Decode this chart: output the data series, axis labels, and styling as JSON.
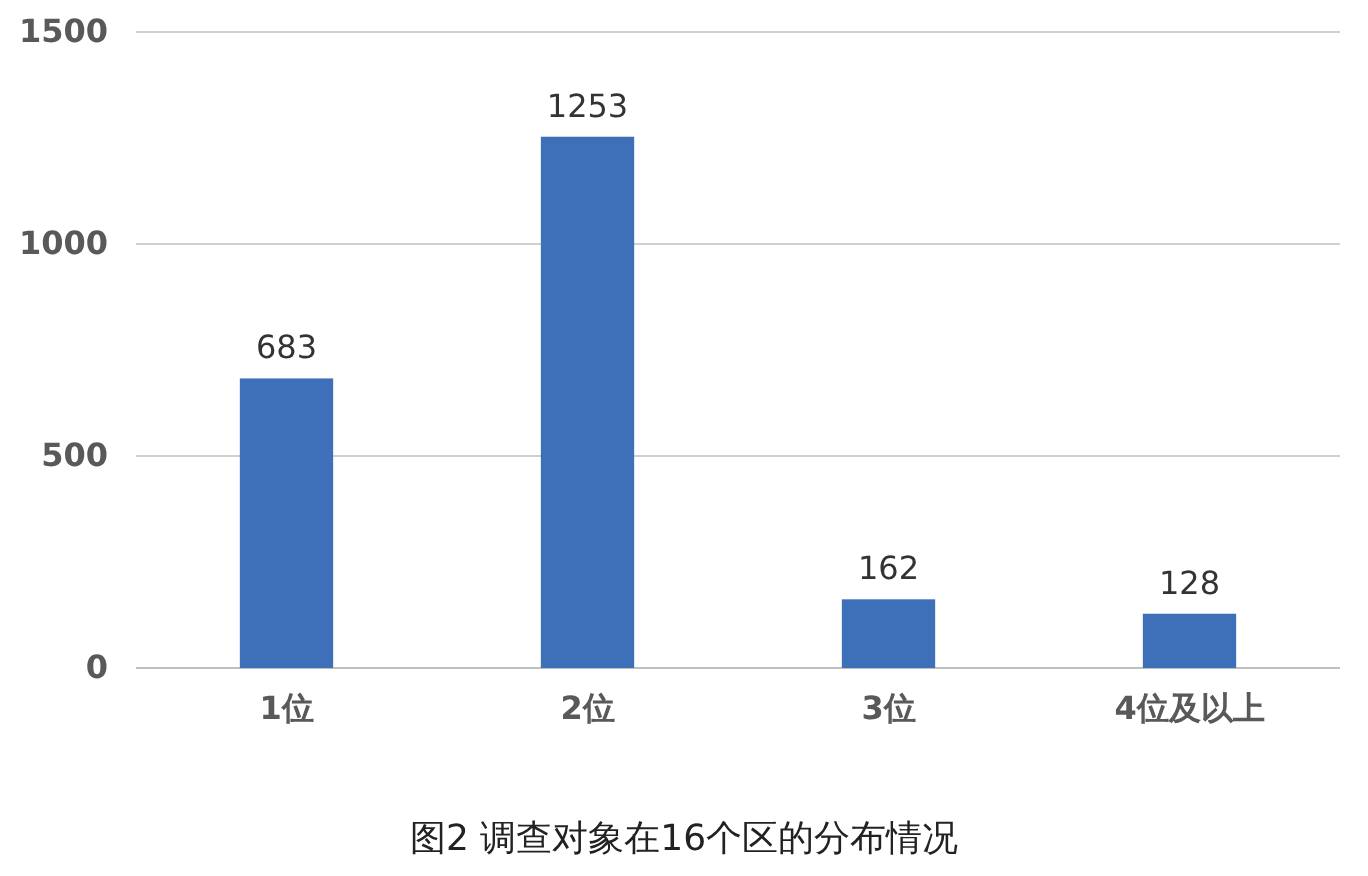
{
  "chart_data": {
    "type": "bar",
    "title": "图2 调查对象在16个区的分布情况",
    "categories": [
      "1位",
      "2位",
      "3位",
      "4位及以上"
    ],
    "values": [
      683,
      1253,
      162,
      128
    ],
    "color": "#3e70b9",
    "ylim": [
      0,
      1500
    ],
    "yticks": [
      0,
      500,
      1000,
      1500
    ],
    "grid": "y",
    "data_labels": true
  }
}
